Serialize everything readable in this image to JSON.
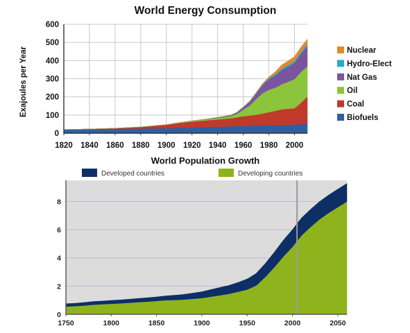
{
  "chart_data": [
    {
      "type": "area",
      "stacked": true,
      "title": "World Energy Consumption",
      "xlabel": "",
      "ylabel": "Exajoules per Year",
      "xlim": [
        1820,
        2010
      ],
      "ylim": [
        0,
        600
      ],
      "x": [
        1820,
        1840,
        1860,
        1880,
        1900,
        1910,
        1920,
        1930,
        1940,
        1950,
        1955,
        1960,
        1965,
        1970,
        1975,
        1980,
        1985,
        1990,
        1995,
        2000,
        2005,
        2010
      ],
      "xticks": [
        "1820",
        "1840",
        "1860",
        "1880",
        "1900",
        "1920",
        "1940",
        "1960",
        "1980",
        "2000"
      ],
      "yticks": [
        "0",
        "100",
        "200",
        "300",
        "400",
        "500",
        "600"
      ],
      "grid": true,
      "legend_position": "right",
      "series": [
        {
          "name": "Biofuels",
          "color": "#2f5fa0",
          "values": [
            20,
            22,
            24,
            26,
            28,
            30,
            32,
            34,
            36,
            38,
            39,
            40,
            41,
            42,
            43,
            44,
            45,
            46,
            47,
            48,
            50,
            52
          ]
        },
        {
          "name": "Coal",
          "color": "#c0392b",
          "values": [
            0,
            1,
            3,
            8,
            18,
            26,
            32,
            36,
            40,
            44,
            48,
            54,
            56,
            60,
            65,
            72,
            78,
            86,
            88,
            90,
            118,
            150
          ]
        },
        {
          "name": "Oil",
          "color": "#8cc43c",
          "values": [
            0,
            0,
            0,
            0,
            1,
            2,
            4,
            6,
            8,
            12,
            20,
            36,
            56,
            86,
            112,
            124,
            128,
            138,
            148,
            160,
            170,
            168
          ]
        },
        {
          "name": "Nat Gas",
          "color": "#7a559e",
          "values": [
            0,
            0,
            0,
            0,
            0,
            0,
            0,
            1,
            2,
            4,
            6,
            12,
            20,
            30,
            44,
            58,
            68,
            78,
            84,
            90,
            100,
            110
          ]
        },
        {
          "name": "Hydro-Elect",
          "color": "#2aa9c8",
          "values": [
            0,
            0,
            0,
            0,
            0,
            0,
            0,
            0,
            1,
            1,
            2,
            2,
            3,
            4,
            5,
            6,
            7,
            8,
            9,
            10,
            11,
            12
          ]
        },
        {
          "name": "Nuclear",
          "color": "#e08a2a",
          "values": [
            0,
            0,
            0,
            0,
            0,
            0,
            0,
            0,
            0,
            0,
            0,
            0,
            0,
            1,
            3,
            6,
            12,
            20,
            22,
            24,
            25,
            26
          ]
        }
      ]
    },
    {
      "type": "area",
      "stacked": true,
      "title": "World Population Growth",
      "xlabel": "",
      "ylabel": "",
      "xlim": [
        1750,
        2060
      ],
      "ylim": [
        0,
        9.5
      ],
      "x": [
        1750,
        1760,
        1770,
        1780,
        1790,
        1800,
        1810,
        1820,
        1830,
        1840,
        1850,
        1860,
        1870,
        1880,
        1890,
        1900,
        1910,
        1920,
        1930,
        1940,
        1950,
        1960,
        1970,
        1980,
        1990,
        2000,
        2005,
        2010,
        2020,
        2030,
        2040,
        2050,
        2060
      ],
      "xticks": [
        "1750",
        "1800",
        "1850",
        "1900",
        "1950",
        "2000",
        "2050"
      ],
      "yticks": [
        "0",
        "2",
        "4",
        "6",
        "8"
      ],
      "grid": true,
      "marker_x": 2005,
      "legend_position": "top",
      "series": [
        {
          "name": "Developing countries",
          "color": "#8fb31c",
          "values": [
            0.55,
            0.58,
            0.62,
            0.68,
            0.72,
            0.75,
            0.78,
            0.82,
            0.86,
            0.9,
            0.95,
            1.0,
            1.02,
            1.05,
            1.1,
            1.15,
            1.25,
            1.35,
            1.45,
            1.6,
            1.75,
            2.05,
            2.65,
            3.35,
            4.1,
            4.8,
            5.2,
            5.6,
            6.2,
            6.75,
            7.2,
            7.6,
            8.0
          ]
        },
        {
          "name": "Developed countries",
          "color": "#0d2f66",
          "values": [
            0.2,
            0.2,
            0.21,
            0.22,
            0.22,
            0.23,
            0.24,
            0.25,
            0.26,
            0.27,
            0.28,
            0.3,
            0.33,
            0.36,
            0.4,
            0.45,
            0.5,
            0.55,
            0.6,
            0.66,
            0.75,
            0.85,
            0.95,
            1.05,
            1.15,
            1.2,
            1.22,
            1.23,
            1.24,
            1.25,
            1.26,
            1.27,
            1.28
          ]
        }
      ]
    }
  ]
}
